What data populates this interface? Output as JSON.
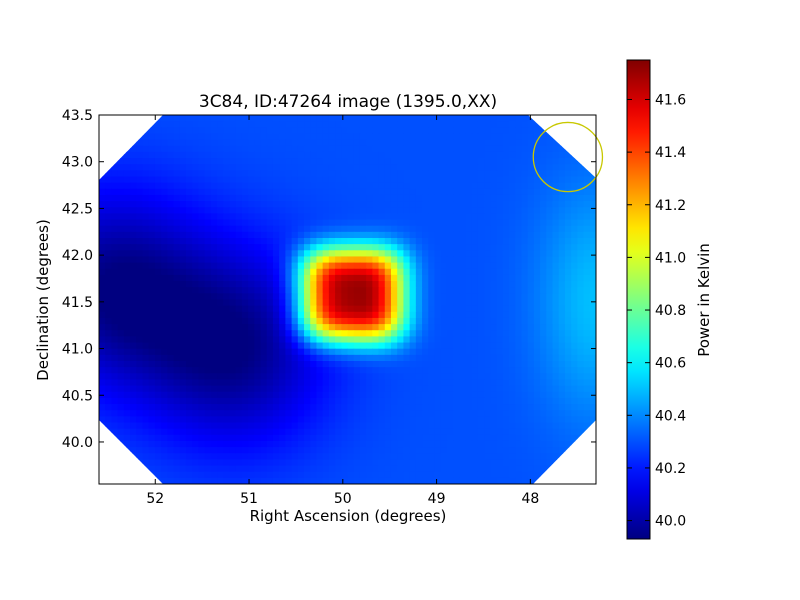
{
  "chart_data": {
    "type": "heatmap",
    "title": "3C84, ID:47264 image (1395.0,XX)",
    "xlabel": "Right Ascension (degrees)",
    "ylabel": "Declination (degrees)",
    "xlim": [
      52.6,
      47.3
    ],
    "ylim": [
      39.55,
      43.5
    ],
    "x_ticks": [
      52,
      51,
      50,
      49,
      48
    ],
    "y_ticks": [
      40.0,
      40.5,
      41.0,
      41.5,
      42.0,
      42.5,
      43.0,
      43.5
    ],
    "x_tick_labels": [
      "52",
      "51",
      "50",
      "49",
      "48"
    ],
    "y_tick_labels": [
      "40.0",
      "40.5",
      "41.0",
      "41.5",
      "42.0",
      "42.5",
      "43.0",
      "43.5"
    ],
    "colorbar": {
      "label": "Power in Kelvin",
      "min": 39.93,
      "max": 41.75,
      "ticks": [
        40.0,
        40.2,
        40.4,
        40.6,
        40.8,
        41.0,
        41.2,
        41.4,
        41.6
      ],
      "tick_labels": [
        "40.0",
        "40.2",
        "40.4",
        "40.6",
        "40.8",
        "41.0",
        "41.2",
        "41.4",
        "41.6"
      ],
      "colormap": "jet"
    },
    "background_level": 40.3,
    "features": [
      {
        "kind": "peak",
        "ra": 49.9,
        "dec": 41.57,
        "value": 41.75
      },
      {
        "kind": "minimum",
        "ra": 51.15,
        "dec": 41.0,
        "value": 39.95
      },
      {
        "kind": "minimum",
        "ra": 52.45,
        "dec": 41.65,
        "value": 39.95
      },
      {
        "kind": "edge-enhancement",
        "ra": 47.3,
        "dec": 41.5,
        "value": 40.5
      }
    ],
    "beam_marker": {
      "ra": 47.6,
      "dec": 43.05,
      "radius_deg": 0.37,
      "color": "#c8c800"
    },
    "grid": false
  }
}
